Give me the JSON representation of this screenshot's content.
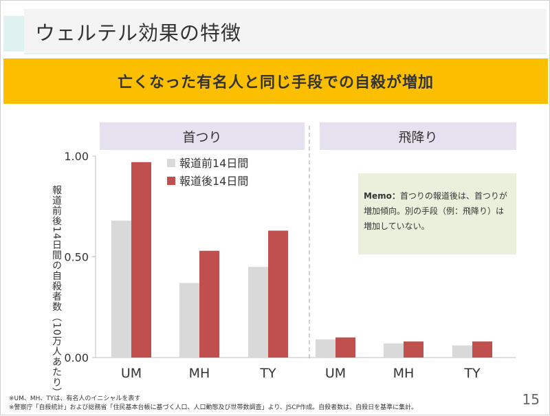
{
  "slide": {
    "title": "ウェルテル効果の特徴",
    "banner": "亡くなった有名人と同じ手段での自殺が増加",
    "page_number": "15"
  },
  "memo": {
    "label": "Memo：",
    "text": "首つりの報道後は、首つりが増加傾向。別の手段（例：飛降り）は増加していない。"
  },
  "footnotes": [
    "※UM、MH、TYは、有名人のイニシャルを表す",
    "※警察庁「自殺統計」および総務省「住民基本台帳に基づく人口、人口動態及び世帯数調査」より、JSCP作成。自殺者数は、自殺日を基準に集計。"
  ],
  "colors": {
    "before": "#d9d9d9",
    "after": "#c0504d",
    "banner": "#fcbf00",
    "group_header": "#e6e1ef",
    "memo_bg": "#ebf0dc"
  },
  "chart_data": {
    "type": "bar",
    "ylabel": "報道前後14日間の自殺者数（10万人あたり）",
    "ylim": [
      0,
      1.0
    ],
    "yticks": [
      "0.00",
      "0.50",
      "1.00"
    ],
    "legend_position": "top-left",
    "groups": [
      {
        "label": "首つり",
        "categories": [
          "UM",
          "MH",
          "TY"
        ]
      },
      {
        "label": "飛降り",
        "categories": [
          "UM",
          "MH",
          "TY"
        ]
      }
    ],
    "categories": [
      "UM",
      "MH",
      "TY",
      "UM",
      "MH",
      "TY"
    ],
    "series": [
      {
        "name": "報道前14日間",
        "values": [
          0.68,
          0.37,
          0.45,
          0.09,
          0.07,
          0.06
        ]
      },
      {
        "name": "報道後14日間",
        "values": [
          0.97,
          0.53,
          0.63,
          0.1,
          0.08,
          0.08
        ]
      }
    ]
  }
}
